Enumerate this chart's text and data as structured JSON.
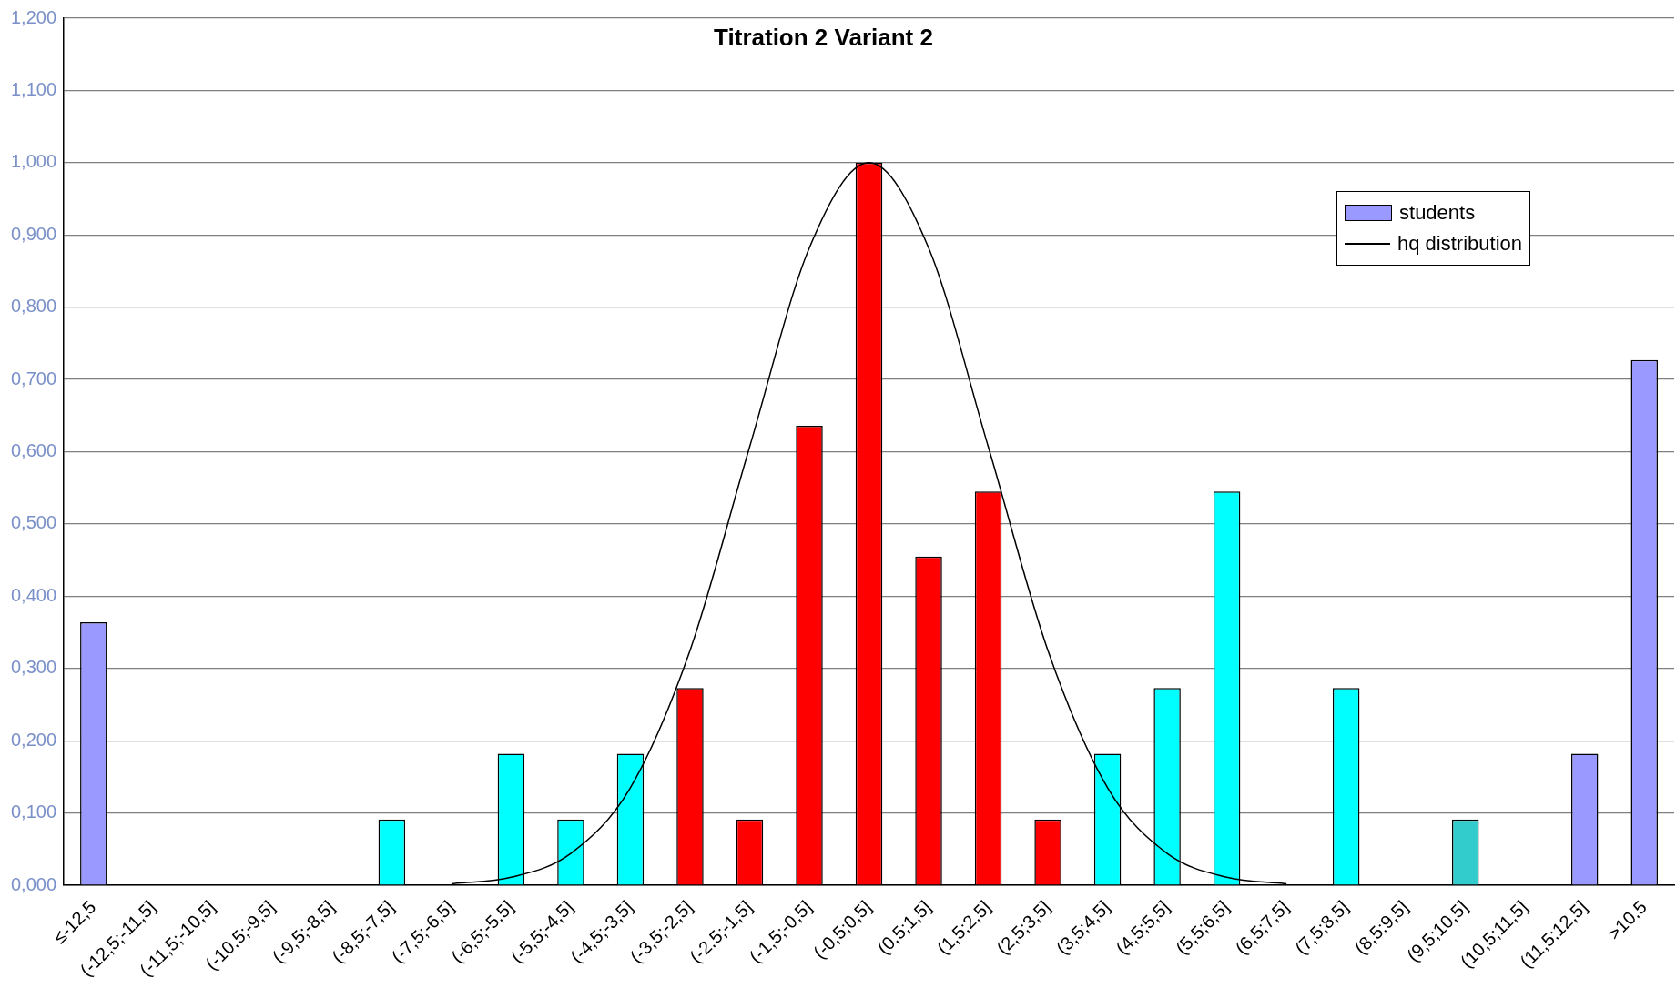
{
  "chart_data": {
    "type": "bar",
    "title": "Titration 2 Variant 2",
    "categories": [
      "≤-12,5",
      "(-12,5;-11,5]",
      "(-11,5;-10,5]",
      "(-10,5;-9,5]",
      "(-9,5;-8,5]",
      "(-8,5;-7,5]",
      "(-7,5;-6,5]",
      "(-6,5;-5,5]",
      "(-5,5;-4,5]",
      "(-4,5;-3,5]",
      "(-3,5;-2,5]",
      "(-2,5;-1,5]",
      "(-1,5;-0,5]",
      "(-0,5;0,5]",
      "(0,5;1,5]",
      "(1,5;2,5]",
      "(2,5;3,5]",
      "(3,5;4,5]",
      "(4,5;5,5]",
      "(5,5;6,5]",
      "(6,5;7,5]",
      "(7,5;8,5]",
      "(8,5;9,5]",
      "(9,5;10,5]",
      "(10,5;11,5]",
      "(11,5;12,5]",
      ">10,5"
    ],
    "series": [
      {
        "name": "students",
        "color": "#9999ff",
        "values": [
          0.364,
          0,
          0,
          0,
          0,
          0.091,
          0,
          0.182,
          0.091,
          0.182,
          0.273,
          0.091,
          0.636,
          1.0,
          0.455,
          0.545,
          0.091,
          0.182,
          0.273,
          0.545,
          0,
          0.273,
          0,
          0.091,
          0,
          0.182,
          0.727
        ],
        "colors": [
          "#9999ff",
          "#00ffff",
          "#00ffff",
          "#00ffff",
          "#00ffff",
          "#00ffff",
          "#00ffff",
          "#00ffff",
          "#00ffff",
          "#00ffff",
          "#ff0000",
          "#ff0000",
          "#ff0000",
          "#ff0000",
          "#ff0000",
          "#ff0000",
          "#ff0000",
          "#00ffff",
          "#00ffff",
          "#00ffff",
          "#00ffff",
          "#00ffff",
          "#00ffff",
          "#33cccc",
          "#00ffff",
          "#9999ff",
          "#9999ff"
        ]
      },
      {
        "name": "hq distribution",
        "type": "line",
        "color": "#000000",
        "values": [
          null,
          null,
          null,
          null,
          null,
          null,
          0.002,
          0.011,
          0.044,
          0.135,
          0.325,
          0.607,
          0.882,
          1.0,
          0.882,
          0.607,
          0.325,
          0.135,
          0.044,
          0.011,
          0.002,
          null,
          null,
          null,
          null,
          null,
          null
        ]
      }
    ],
    "ylim": [
      0,
      1.2
    ],
    "yticks": [
      {
        "value": 0,
        "label": "0,000"
      },
      {
        "value": 0.1,
        "label": "0,100"
      },
      {
        "value": 0.2,
        "label": "0,200"
      },
      {
        "value": 0.3,
        "label": "0,300"
      },
      {
        "value": 0.4,
        "label": "0,400"
      },
      {
        "value": 0.5,
        "label": "0,500"
      },
      {
        "value": 0.6,
        "label": "0,600"
      },
      {
        "value": 0.7,
        "label": "0,700"
      },
      {
        "value": 0.8,
        "label": "0,800"
      },
      {
        "value": 0.9,
        "label": "0,900"
      },
      {
        "value": 1.0,
        "label": "1,000"
      },
      {
        "value": 1.1,
        "label": "1,100"
      },
      {
        "value": 1.2,
        "label": "1,200"
      }
    ],
    "grid": "y",
    "legend": "top right",
    "marker": "none",
    "line_style": "solid"
  }
}
